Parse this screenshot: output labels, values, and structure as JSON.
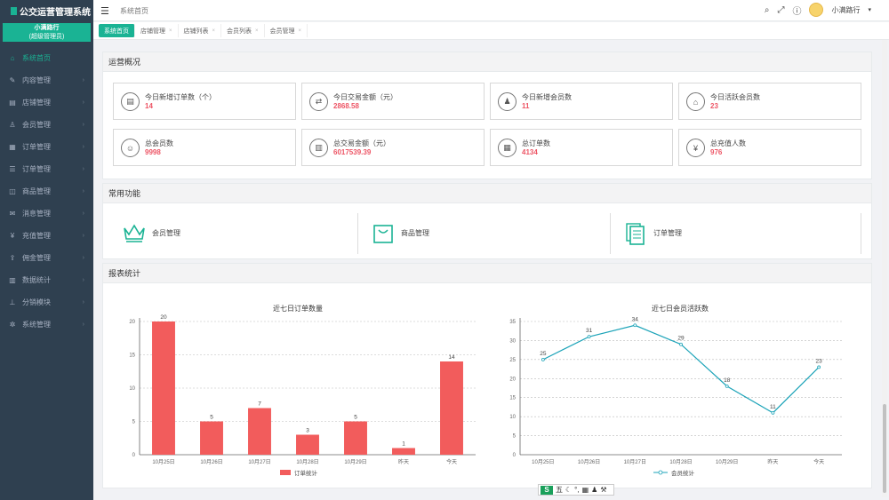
{
  "app": {
    "title": "公交运营管理系统",
    "user_line1": "小满路行",
    "user_line2": "(超级管理员)"
  },
  "sidebar": {
    "items": [
      {
        "label": "系统首页",
        "icon": "home-icon",
        "glyph": "⌂",
        "active": true
      },
      {
        "label": "内容管理",
        "icon": "edit-icon",
        "glyph": "✎"
      },
      {
        "label": "店铺管理",
        "icon": "cart-icon",
        "glyph": "▤"
      },
      {
        "label": "会员管理",
        "icon": "user-icon",
        "glyph": "♙"
      },
      {
        "label": "订单管理",
        "icon": "calendar-icon",
        "glyph": "▦"
      },
      {
        "label": "订单管理",
        "icon": "list-icon",
        "glyph": "☰"
      },
      {
        "label": "商品管理",
        "icon": "tag-icon",
        "glyph": "◫"
      },
      {
        "label": "消息管理",
        "icon": "message-icon",
        "glyph": "✉"
      },
      {
        "label": "充值管理",
        "icon": "yen-icon",
        "glyph": "¥"
      },
      {
        "label": "佣金管理",
        "icon": "share-icon",
        "glyph": "⇪"
      },
      {
        "label": "数据统计",
        "icon": "chart-icon",
        "glyph": "▥"
      },
      {
        "label": "分销模块",
        "icon": "sitemap-icon",
        "glyph": "⊥"
      },
      {
        "label": "系统管理",
        "icon": "gear-icon",
        "glyph": "✲"
      }
    ]
  },
  "topbar": {
    "breadcrumb": "系统首页"
  },
  "tabs": [
    {
      "label": "系统首页",
      "active": true
    },
    {
      "label": "店铺管理"
    },
    {
      "label": "店铺列表"
    },
    {
      "label": "会员列表"
    },
    {
      "label": "会员管理"
    }
  ],
  "panels": {
    "stats_title": "运营概况",
    "func_title": "常用功能",
    "report_title": "报表统计"
  },
  "stats": [
    {
      "label": "今日新增订单数（个）",
      "value": "14",
      "icon": "document-icon",
      "glyph": "▤"
    },
    {
      "label": "今日交易金额（元）",
      "value": "2868.58",
      "icon": "exchange-icon",
      "glyph": "⇄"
    },
    {
      "label": "今日新增会员数",
      "value": "11",
      "icon": "users-icon",
      "glyph": "♟"
    },
    {
      "label": "今日活跃会员数",
      "value": "23",
      "icon": "shopping-icon",
      "glyph": "⌂"
    },
    {
      "label": "总会员数",
      "value": "9998",
      "icon": "group-icon",
      "glyph": "☺"
    },
    {
      "label": "总交易金额（元）",
      "value": "6017539.39",
      "icon": "bar-chart-icon",
      "glyph": "▥"
    },
    {
      "label": "总订单数",
      "value": "4134",
      "icon": "receipt-icon",
      "glyph": "▦"
    },
    {
      "label": "总充值人数",
      "value": "976",
      "icon": "yen-circle-icon",
      "glyph": "¥"
    }
  ],
  "functions": [
    {
      "label": "会员管理",
      "icon": "crown-icon"
    },
    {
      "label": "商品管理",
      "icon": "bag-icon"
    },
    {
      "label": "订单管理",
      "icon": "files-icon"
    }
  ],
  "colors": {
    "accent": "#1ab394",
    "bar": "#f25c5c",
    "line": "#1ba3b8",
    "value": "#ed5565"
  },
  "chart_data": [
    {
      "type": "bar",
      "title": "近七日订单数量",
      "categories": [
        "10月25日",
        "10月26日",
        "10月27日",
        "10月28日",
        "10月29日",
        "昨天",
        "今天"
      ],
      "series": [
        {
          "name": "订单统计",
          "values": [
            20,
            5,
            7,
            3,
            5,
            1,
            14
          ]
        }
      ],
      "ylim": [
        0,
        20
      ],
      "yticks": [
        0,
        5,
        10,
        15,
        20
      ],
      "grid": true,
      "legend": "bottom"
    },
    {
      "type": "line",
      "title": "近七日会员活跃数",
      "categories": [
        "10月25日",
        "10月26日",
        "10月27日",
        "10月28日",
        "10月29日",
        "昨天",
        "今天"
      ],
      "series": [
        {
          "name": "会员统计",
          "values": [
            25,
            31,
            34,
            29,
            18,
            11,
            23
          ]
        }
      ],
      "ylim": [
        0,
        35
      ],
      "yticks": [
        0,
        5,
        10,
        15,
        20,
        25,
        30,
        35
      ],
      "grid": true,
      "legend": "bottom"
    }
  ],
  "ime": {
    "label": "五"
  }
}
